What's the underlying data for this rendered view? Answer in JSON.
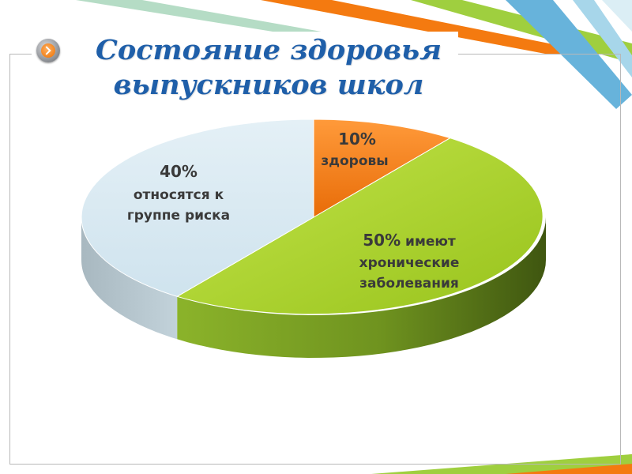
{
  "slide": {
    "title_line1": "Состояние здоровья",
    "title_line2": "выпускников школ"
  },
  "icons": {
    "nav": "arrow-right-circle-icon"
  },
  "colors": {
    "title": "#1f5fa9",
    "accent_orange": "#f47a10",
    "accent_blue": "#67b3db",
    "accent_green": "#9fcf3f"
  },
  "chart_data": {
    "type": "pie",
    "style": "3d",
    "slices": [
      {
        "value": 10,
        "color": "#f47a10",
        "label_pct": "10%",
        "label_text": "здоровы"
      },
      {
        "value": 50,
        "color": "#a9d42a",
        "label_pct": "50%",
        "label_text": "имеют хронические заболевания"
      },
      {
        "value": 40,
        "color": "#d7e9f2",
        "label_pct": "40%",
        "label_text": "относятся к группе риска"
      }
    ]
  }
}
